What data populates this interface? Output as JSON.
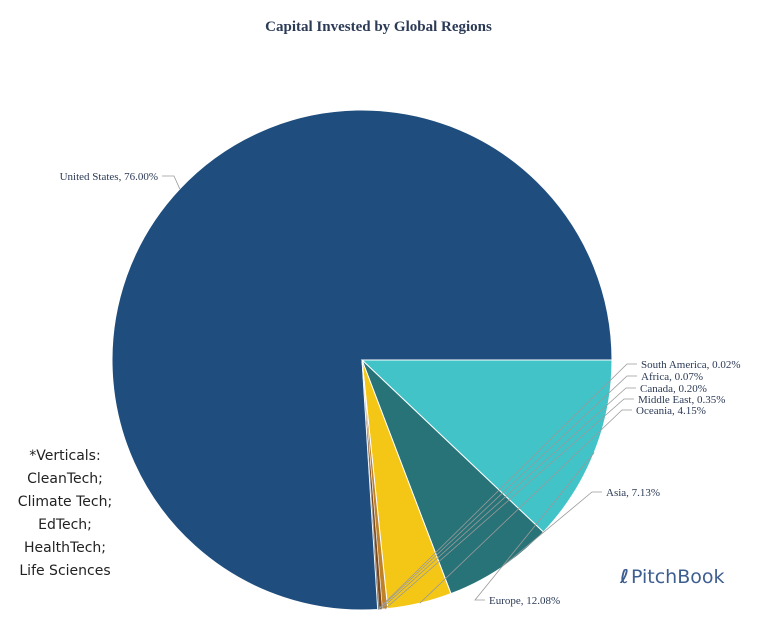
{
  "chart_data": {
    "type": "pie",
    "title": "Capital Invested by Global Regions",
    "slices": [
      {
        "label": "United States",
        "value": 76.0,
        "display": "United States, 76.00%",
        "color": "#1f4e7e"
      },
      {
        "label": "Europe",
        "value": 12.08,
        "display": "Europe, 12.08%",
        "color": "#41c3c8"
      },
      {
        "label": "Asia",
        "value": 7.13,
        "display": "Asia, 7.13%",
        "color": "#277377"
      },
      {
        "label": "Oceania",
        "value": 4.15,
        "display": "Oceania, 4.15%",
        "color": "#f4c716"
      },
      {
        "label": "Middle East",
        "value": 0.35,
        "display": "Middle East, 0.35%",
        "color": "#c08228"
      },
      {
        "label": "Canada",
        "value": 0.2,
        "display": "Canada, 0.20%",
        "color": "#7a4a1e"
      },
      {
        "label": "Africa",
        "value": 0.07,
        "display": "Africa, 0.07%",
        "color": "#4a4a4a"
      },
      {
        "label": "South America",
        "value": 0.02,
        "display": "South America, 0.02%",
        "color": "#9a9a9a"
      }
    ]
  },
  "notes": {
    "lines": [
      "*Verticals:",
      "CleanTech;",
      "Climate Tech;",
      "EdTech;",
      "HealthTech;",
      "Life Sciences"
    ]
  },
  "brand": {
    "name": "PitchBook",
    "color": "#3d5f8f"
  }
}
